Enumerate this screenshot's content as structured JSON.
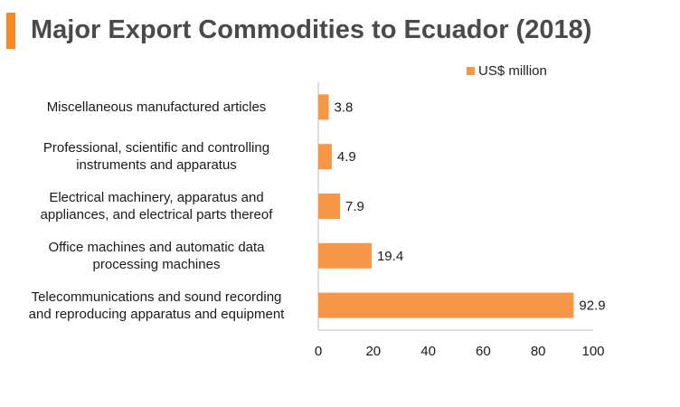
{
  "title": "Major Export Commodities to Ecuador (2018)",
  "legend": {
    "label": "US$ million"
  },
  "colors": {
    "accent": "#F5891F",
    "bar": "#F79646",
    "title": "#4a4a4a",
    "axis": "#bfbfbf"
  },
  "chart_data": {
    "type": "bar",
    "orientation": "horizontal",
    "title": "Major Export Commodities to Ecuador (2018)",
    "xlabel": "",
    "ylabel": "",
    "xlim": [
      0,
      100
    ],
    "xticks": [
      0,
      20,
      40,
      60,
      80,
      100
    ],
    "grid": false,
    "legend_position": "top-right",
    "categories": [
      [
        "Miscellaneous manufactured articles"
      ],
      [
        "Professional, scientific and controlling",
        "instruments and apparatus"
      ],
      [
        "Electrical machinery, apparatus and",
        "appliances, and electrical parts thereof"
      ],
      [
        "Office machines and automatic data",
        "processing machines"
      ],
      [
        "Telecommunications and sound recording",
        "and reproducing apparatus and equipment"
      ]
    ],
    "series": [
      {
        "name": "US$ million",
        "values": [
          3.8,
          4.9,
          7.9,
          19.4,
          92.9
        ]
      }
    ],
    "value_labels": [
      "3.8",
      "4.9",
      "7.9",
      "19.4",
      "92.9"
    ]
  }
}
